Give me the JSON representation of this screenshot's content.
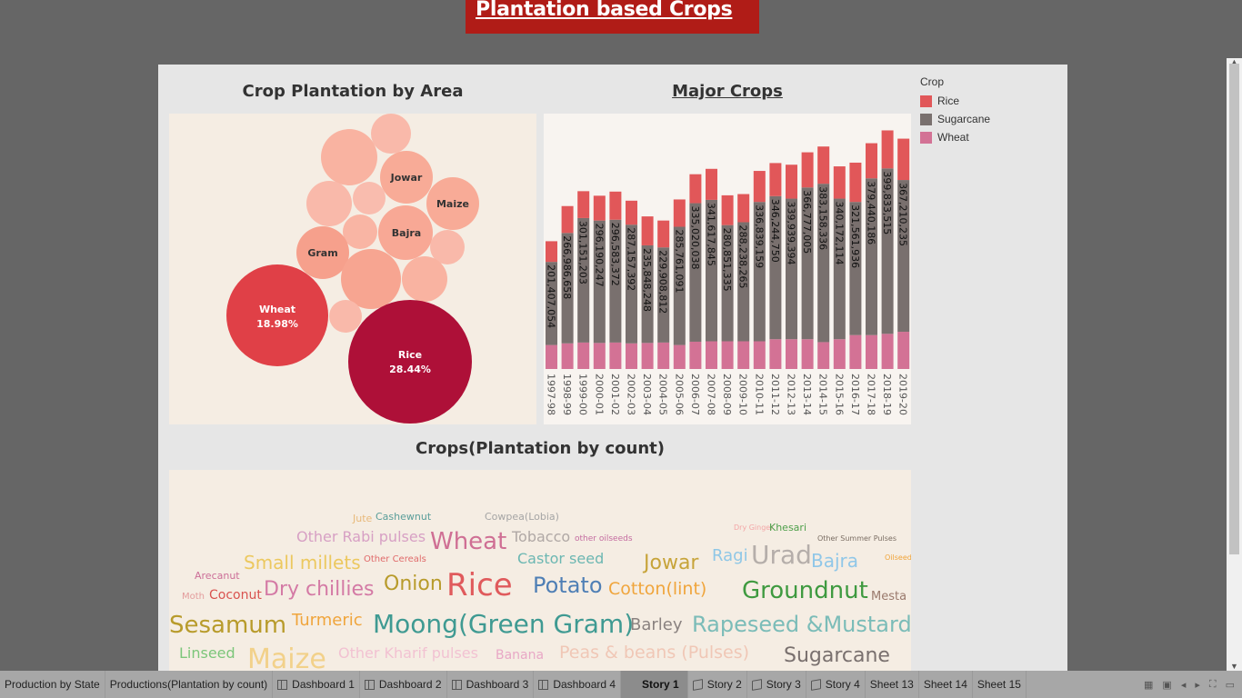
{
  "title_banner": "Plantation based Crops",
  "dashboard": {
    "bubble_title": "Crop Plantation by Area",
    "bar_title": "Major Crops",
    "cloud_title": "Crops(Plantation by count)"
  },
  "bubble_labels": {
    "jowar": "Jowar",
    "maize": "Maize",
    "bajra": "Bajra",
    "gram": "Gram",
    "wheat": "Wheat",
    "wheat_pct": "18.98%",
    "rice": "Rice",
    "rice_pct": "28.44%"
  },
  "legend": {
    "title": "Crop",
    "items": [
      {
        "label": "Rice",
        "color": "#e15759"
      },
      {
        "label": "Sugarcane",
        "color": "#79706e"
      },
      {
        "label": "Wheat",
        "color": "#d37295"
      }
    ]
  },
  "chart_data": {
    "type": "bar",
    "stacked": true,
    "categories": [
      "1997-98",
      "1998-99",
      "1999-00",
      "2000-01",
      "2001-02",
      "2002-03",
      "2003-04",
      "2004-05",
      "2005-06",
      "2006-07",
      "2007-08",
      "2008-09",
      "2009-10",
      "2010-11",
      "2011-12",
      "2012-13",
      "2013-14",
      "2014-15",
      "2015-16",
      "2016-17",
      "2017-18",
      "2018-19",
      "2019-20"
    ],
    "sugarcane_labels": [
      "201,407,054",
      "266,986,658",
      "301,151,203",
      "296,190,247",
      "296,583,372",
      "287,157,392",
      "235,848,248",
      "229,908,812",
      "285,761,091",
      "335,020,038",
      "341,617,845",
      "280,851,335",
      "288,238,265",
      "336,839,159",
      "346,244,750",
      "339,939,394",
      "366,777,005",
      "383,158,336",
      "340,172,114",
      "321,561,936",
      "379,440,186",
      "399,833,515",
      "367,210,235"
    ],
    "series": [
      {
        "name": "Wheat",
        "color": "#d37295",
        "values": [
          58,
          62,
          64,
          63,
          64,
          62,
          63,
          64,
          58,
          66,
          67,
          67,
          67,
          67,
          72,
          72,
          72,
          65,
          72,
          82,
          82,
          85,
          90
        ]
      },
      {
        "name": "Sugarcane",
        "color": "#79706e",
        "values": [
          201,
          267,
          301,
          296,
          297,
          287,
          236,
          230,
          286,
          335,
          342,
          281,
          288,
          337,
          346,
          340,
          367,
          383,
          340,
          322,
          379,
          400,
          367
        ]
      },
      {
        "name": "Rice",
        "color": "#e15759",
        "values": [
          50,
          65,
          65,
          60,
          68,
          58,
          70,
          65,
          66,
          70,
          75,
          72,
          68,
          75,
          80,
          82,
          85,
          90,
          78,
          95,
          85,
          92,
          100
        ]
      }
    ]
  },
  "word_cloud": [
    {
      "text": "Jute",
      "color": "#e8b97a",
      "size": 11
    },
    {
      "text": "Cashewnut",
      "color": "#5a9e9a",
      "size": 11
    },
    {
      "text": "Cowpea(Lobia)",
      "color": "#a5a5a5",
      "size": 11
    },
    {
      "text": "Dry Ginger",
      "color": "#f4a6a6",
      "size": 8
    },
    {
      "text": "Khesari",
      "color": "#4fa04b",
      "size": 11
    },
    {
      "text": "Other Rabi pulses",
      "color": "#d7a0c4",
      "size": 16
    },
    {
      "text": "Wheat",
      "color": "#cf6f94",
      "size": 26
    },
    {
      "text": "Tobacco",
      "color": "#b0a8a5",
      "size": 16
    },
    {
      "text": "other oilseeds",
      "color": "#c46ca0",
      "size": 9
    },
    {
      "text": "Other Summer Pulses",
      "color": "#7a6d63",
      "size": 8
    },
    {
      "text": "Small millets",
      "color": "#ecc85f",
      "size": 20
    },
    {
      "text": "Other Cereals",
      "color": "#e06a6a",
      "size": 10
    },
    {
      "text": "Castor seed",
      "color": "#6cb7b2",
      "size": 16
    },
    {
      "text": "Jowar",
      "color": "#c7a43a",
      "size": 22
    },
    {
      "text": "Ragi",
      "color": "#8fc7e6",
      "size": 18
    },
    {
      "text": "Urad",
      "color": "#b5aeaa",
      "size": 28
    },
    {
      "text": "Bajra",
      "color": "#90c7e8",
      "size": 20
    },
    {
      "text": "Oilseeds total",
      "color": "#f0a53c",
      "size": 8
    },
    {
      "text": "Arecanut",
      "color": "#cc6f98",
      "size": 11
    },
    {
      "text": "Moth",
      "color": "#e39c9c",
      "size": 10
    },
    {
      "text": "Coconut",
      "color": "#d9534f",
      "size": 14
    },
    {
      "text": "Dry chillies",
      "color": "#d47aa5",
      "size": 22
    },
    {
      "text": "Onion",
      "color": "#b89b2b",
      "size": 22
    },
    {
      "text": "Rice",
      "color": "#e05a5c",
      "size": 34
    },
    {
      "text": "Potato",
      "color": "#4f7fb5",
      "size": 24
    },
    {
      "text": "Cotton(lint)",
      "color": "#f0a53c",
      "size": 19
    },
    {
      "text": "Groundnut",
      "color": "#3f9a40",
      "size": 26
    },
    {
      "text": "Mesta",
      "color": "#9a7a6d",
      "size": 13
    },
    {
      "text": "Sesamum",
      "color": "#b89b2b",
      "size": 26
    },
    {
      "text": "Turmeric",
      "color": "#f0a53c",
      "size": 18
    },
    {
      "text": "Moong(Green Gram)",
      "color": "#3f9a92",
      "size": 28
    },
    {
      "text": "Barley",
      "color": "#8a8280",
      "size": 18
    },
    {
      "text": "Rapeseed &Mustard",
      "color": "#7bbcb8",
      "size": 24
    },
    {
      "text": "Linseed",
      "color": "#7cc67a",
      "size": 16
    },
    {
      "text": "Maize",
      "color": "#f2d18a",
      "size": 30
    },
    {
      "text": "Other Kharif pulses",
      "color": "#f2c2d2",
      "size": 16
    },
    {
      "text": "Banana",
      "color": "#e8a8c6",
      "size": 14
    },
    {
      "text": "Peas & beans (Pulses)",
      "color": "#f0c7b6",
      "size": 19
    },
    {
      "text": "Sugarcane",
      "color": "#79706e",
      "size": 22
    }
  ],
  "tabs": [
    {
      "label": "Production by State",
      "icon": ""
    },
    {
      "label": "Productions(Plantation by count)",
      "icon": ""
    },
    {
      "label": "Dashboard 1",
      "icon": "grid"
    },
    {
      "label": "Dashboard 2",
      "icon": "grid"
    },
    {
      "label": "Dashboard 3",
      "icon": "grid"
    },
    {
      "label": "Dashboard 4",
      "icon": "grid"
    },
    {
      "label": "Story 1",
      "icon": "",
      "active": true
    },
    {
      "label": "Story 2",
      "icon": "story"
    },
    {
      "label": "Story 3",
      "icon": "story"
    },
    {
      "label": "Story 4",
      "icon": "story"
    },
    {
      "label": "Sheet 13",
      "icon": ""
    },
    {
      "label": "Sheet 14",
      "icon": ""
    },
    {
      "label": "Sheet 15",
      "icon": ""
    }
  ],
  "icons": {
    "scroll_up": "▲",
    "scroll_down": "▼",
    "tab_controls": [
      "▦",
      "▣",
      "◂",
      "▸",
      "⛶",
      "▭"
    ]
  }
}
